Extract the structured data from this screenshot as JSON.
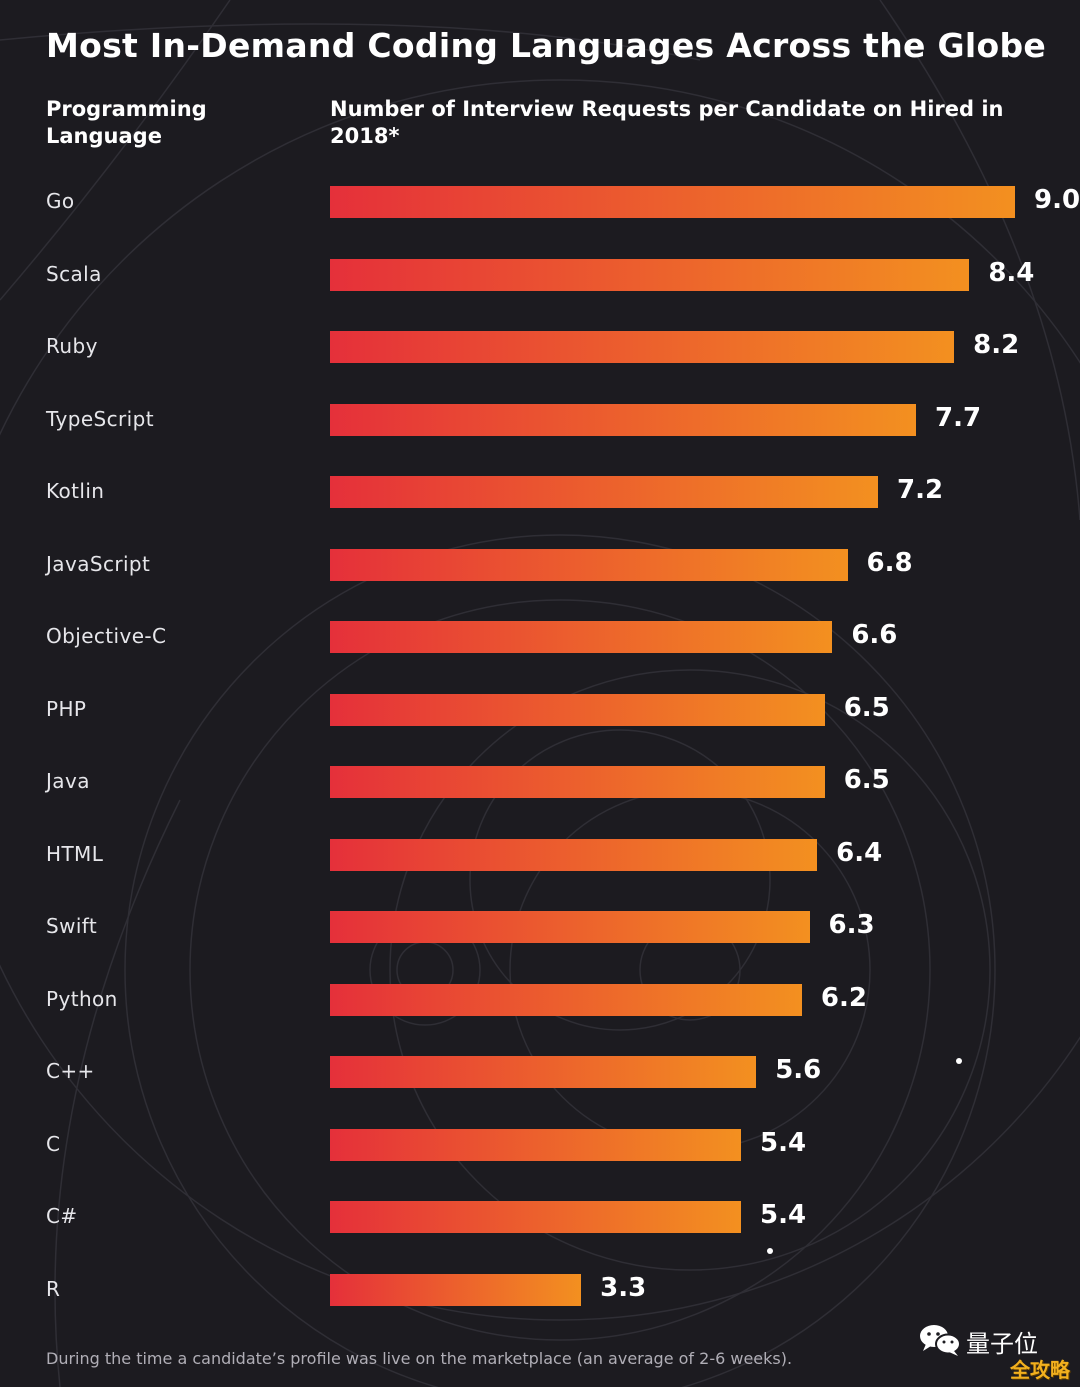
{
  "chart_data": {
    "type": "bar",
    "orientation": "horizontal",
    "title": "Most In-Demand Coding Languages Across the Globe",
    "category_header": "Programming Language",
    "value_header": "Number of Interview Requests per Candidate on Hired in 2018*",
    "categories": [
      "Go",
      "Scala",
      "Ruby",
      "TypeScript",
      "Kotlin",
      "JavaScript",
      "Objective-C",
      "PHP",
      "Java",
      "HTML",
      "Swift",
      "Python",
      "C++",
      "C",
      "C#",
      "R"
    ],
    "values": [
      9.0,
      8.4,
      8.2,
      7.7,
      7.2,
      6.8,
      6.6,
      6.5,
      6.5,
      6.4,
      6.3,
      6.2,
      5.6,
      5.4,
      5.4,
      3.3
    ],
    "value_labels": [
      "9.0",
      "8.4",
      "8.2",
      "7.7",
      "7.2",
      "6.8",
      "6.6",
      "6.5",
      "6.5",
      "6.4",
      "6.3",
      "6.2",
      "5.6",
      "5.4",
      "5.4",
      "3.3"
    ],
    "xlim": [
      0,
      9.0
    ],
    "grid": false,
    "legend": "none",
    "footnote": "During the time a candidate’s profile was live on the marketplace (an average of 2-6 weeks).",
    "colors": {
      "bar_start": "#e5303a",
      "bar_end": "#f39020",
      "background": "#1c1b20"
    }
  },
  "watermark": {
    "icon": "wechat-icon",
    "text": "量子位",
    "badge_text": "全攻略"
  }
}
